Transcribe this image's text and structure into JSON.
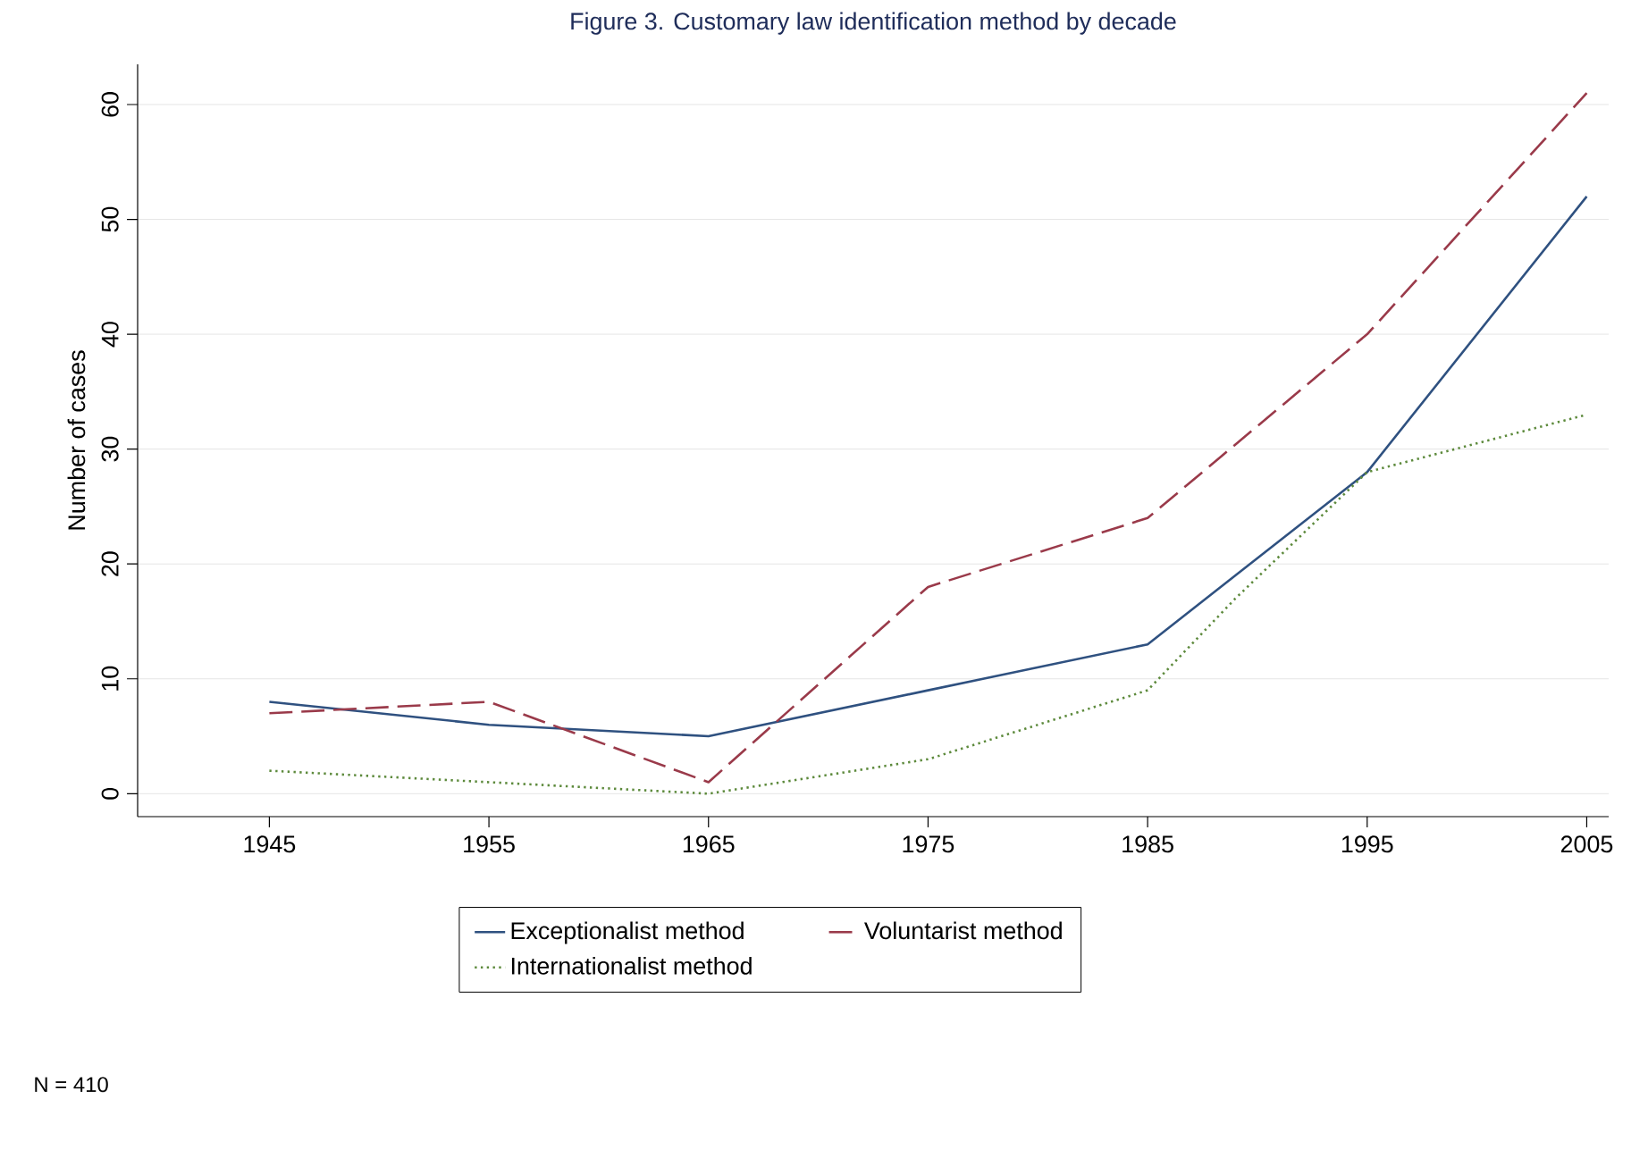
{
  "chart_data": {
    "type": "line",
    "title": "Figure 3. Customary law identification method by decade",
    "ylabel": "Number of cases",
    "xlim": [
      1939,
      2006
    ],
    "xticks": [
      1945,
      1955,
      1965,
      1975,
      1985,
      1995,
      2005
    ],
    "ylim": [
      -2,
      63.5
    ],
    "yticks": [
      0,
      10,
      20,
      30,
      40,
      50,
      60
    ],
    "grid": "y",
    "legend": "bottom",
    "series": [
      {
        "name": "Exceptionalist method",
        "color": "#2f5180",
        "line_style": "solid",
        "x": [
          1945,
          1955,
          1965,
          1975,
          1985,
          1989,
          1995,
          2005
        ],
        "values": [
          8,
          6,
          5,
          9,
          13,
          19,
          28,
          52
        ]
      },
      {
        "name": "Voluntarist method",
        "color": "#9a3a4a",
        "line_style": "dashed",
        "x": [
          1945,
          1955,
          1965,
          1975,
          1985,
          1995,
          2005
        ],
        "values": [
          7,
          8,
          1,
          18,
          24,
          40,
          61
        ]
      },
      {
        "name": "Internationalist method",
        "color": "#5d8a3c",
        "line_style": "dotted",
        "x": [
          1945,
          1955,
          1965,
          1975,
          1985,
          1989,
          1995,
          2005
        ],
        "values": [
          2,
          1,
          0,
          3,
          9,
          17,
          28,
          33
        ]
      }
    ],
    "annotations": [
      "N = 410"
    ]
  }
}
